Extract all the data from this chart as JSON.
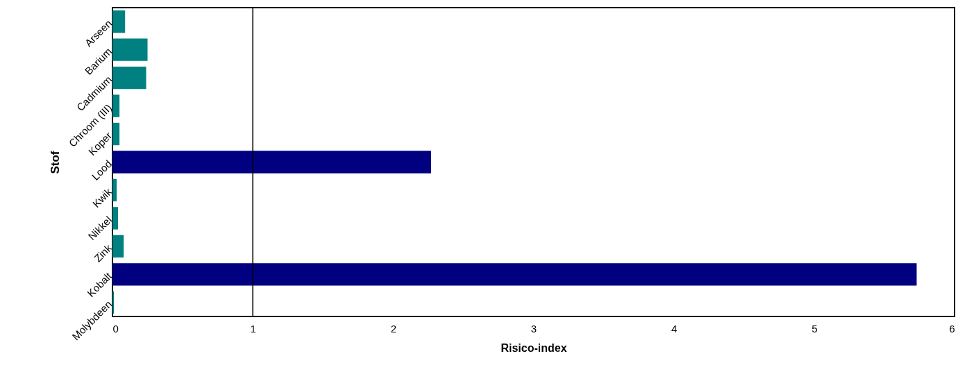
{
  "chart_data": {
    "type": "bar",
    "orientation": "horizontal",
    "xlabel": "Risico-index",
    "ylabel": "Stof",
    "categories": [
      "Arseen",
      "Barium",
      "Cadmium",
      "Chroom (III)",
      "Koper",
      "Lood",
      "Kwik",
      "Nikkel",
      "Zink",
      "Kobalt",
      "Molybdeen"
    ],
    "values": [
      0.09,
      0.25,
      0.24,
      0.05,
      0.05,
      2.27,
      0.03,
      0.04,
      0.08,
      5.73,
      0.01
    ],
    "colors": [
      "#008080",
      "#008080",
      "#008080",
      "#008080",
      "#008080",
      "#000080",
      "#008080",
      "#008080",
      "#008080",
      "#000080",
      "#008080"
    ],
    "xlim": [
      0,
      6
    ],
    "xticks": [
      0,
      1,
      2,
      3,
      4,
      5,
      6
    ],
    "grid": false,
    "ref_lines": [
      {
        "axis": "x",
        "value": 1,
        "color": "#000000"
      }
    ]
  }
}
